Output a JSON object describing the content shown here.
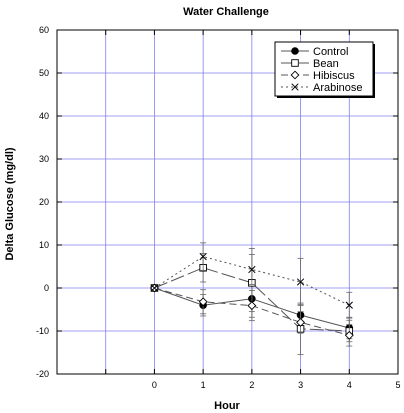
{
  "chart_data": {
    "type": "line",
    "title": "Water Challenge",
    "xlabel": "Hour",
    "ylabel": "Delta Glucose (mg/dl)",
    "xlim": [
      -2,
      5
    ],
    "ylim": [
      -20,
      60
    ],
    "xticks": [
      0,
      1,
      2,
      3,
      4,
      5
    ],
    "yticks": [
      -20,
      -10,
      0,
      10,
      20,
      30,
      40,
      50,
      60
    ],
    "grid": true,
    "legend_position": "top-right",
    "series": [
      {
        "name": "Control",
        "marker": "filled-circle",
        "dash": "solid",
        "x": [
          0,
          1,
          2,
          3,
          4
        ],
        "y": [
          0,
          -4,
          -2.5,
          -6.3,
          -9.3
        ],
        "err": [
          0,
          2.5,
          3.0,
          2.5,
          2.5
        ]
      },
      {
        "name": "Bean",
        "marker": "open-square",
        "dash": "long-dash",
        "x": [
          0,
          1,
          2,
          3,
          4
        ],
        "y": [
          0,
          4.7,
          1.2,
          -9.5,
          -10
        ],
        "err": [
          0,
          3.3,
          8.0,
          6.0,
          2.5
        ]
      },
      {
        "name": "Hibiscus",
        "marker": "open-diamond",
        "dash": "dash",
        "x": [
          0,
          1,
          2,
          3,
          4
        ],
        "y": [
          0,
          -3.2,
          -4.1,
          -8,
          -11
        ],
        "err": [
          0,
          2.8,
          3.5,
          2.5,
          2.5
        ]
      },
      {
        "name": "Arabinose",
        "marker": "x",
        "dash": "dot",
        "x": [
          0,
          1,
          2,
          3,
          4
        ],
        "y": [
          0,
          7.3,
          4.3,
          1.4,
          -4
        ],
        "err": [
          0,
          3.2,
          3.5,
          5.5,
          3.0
        ]
      }
    ]
  }
}
